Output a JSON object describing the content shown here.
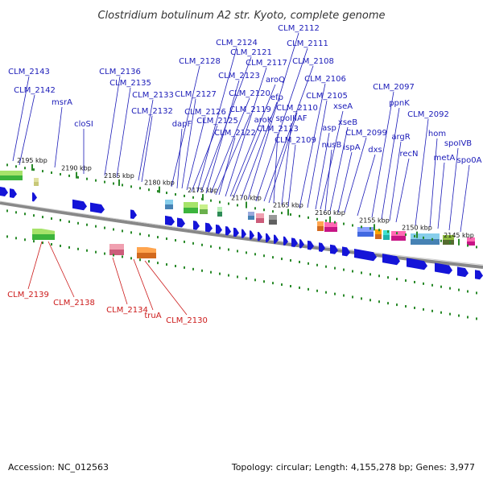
{
  "title": "Clostridium botulinum A2 str. Kyoto, complete genome",
  "footer": {
    "accession": "Accession: NC_012563",
    "topology": "Topology: circular; Length: 4,155,278 bp; Genes: 3,977"
  },
  "colors": {
    "forward_label": "#1a1ab8",
    "reverse_label": "#cc1a1a",
    "forward_gene": "#1414d8",
    "reverse_gene": "#e01010",
    "backbone": "#888888",
    "tick": "#2a8a2a"
  },
  "kbp_ticks": [
    "2195 kbp",
    "2190 kbp",
    "2185 kbp",
    "2180 kbp",
    "2175 kbp",
    "2170 kbp",
    "2165 kbp",
    "2160 kbp",
    "2155 kbp",
    "2150 kbp",
    "2145 kbp"
  ],
  "forward_labels": [
    "CLM_2143",
    "CLM_2142",
    "msrA",
    "cloSI",
    "CLM_2136",
    "CLM_2135",
    "CLM_2133",
    "CLM_2132",
    "CLM_2128",
    "dapF",
    "CLM_2127",
    "CLM_2126",
    "CLM_2125",
    "CLM_2124",
    "CLM_2121",
    "CLM_2123",
    "CLM_2120",
    "CLM_2119",
    "CLM_2122",
    "CLM_2117",
    "aroQ",
    "aroK",
    "efp",
    "CLM_2112",
    "CLM_2111",
    "CLM_2108",
    "CLM_2110",
    "CLM_2113",
    "spoIIIAF",
    "CLM_2109",
    "CLM_2106",
    "CLM_2105",
    "asp",
    "xseA",
    "nusB",
    "xseB",
    "ispA",
    "CLM_2099",
    "dxs",
    "CLM_2097",
    "ppnK",
    "argR",
    "recN",
    "CLM_2092",
    "hom",
    "metA",
    "spoIVB",
    "spo0A"
  ],
  "reverse_labels": [
    "CLM_2139",
    "CLM_2138",
    "CLM_2134",
    "truA",
    "CLM_2130"
  ]
}
